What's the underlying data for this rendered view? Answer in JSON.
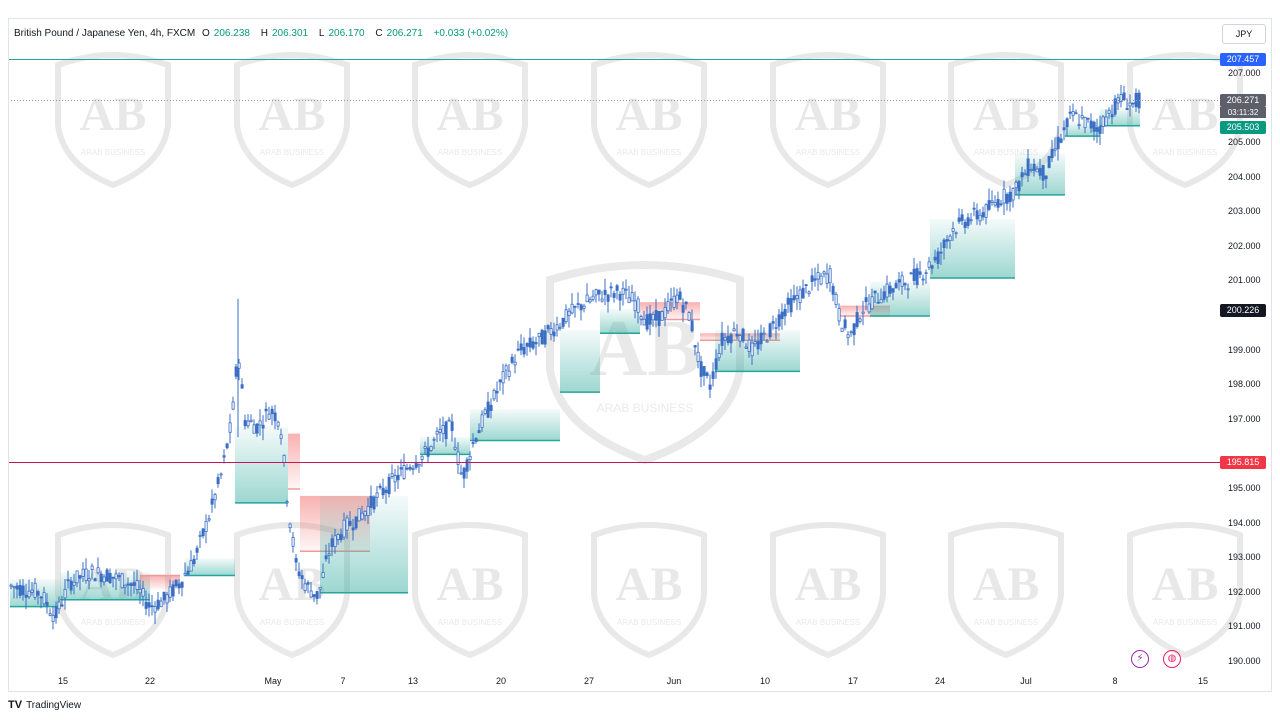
{
  "legend": {
    "symbol": "British Pound / Japanese Yen, 4h, FXCM",
    "open_label": "O",
    "open": "206.238",
    "high_label": "H",
    "high": "206.301",
    "low_label": "L",
    "low": "206.170",
    "close_label": "C",
    "close": "206.271",
    "change": "+0.033 (+0.02%)"
  },
  "currency_button": "JPY",
  "watermark_text": "ARAB BUSINESS",
  "price_axis": [
    "207.000",
    "205.000",
    "204.000",
    "203.000",
    "202.000",
    "201.000",
    "199.000",
    "198.000",
    "197.000",
    "195.000",
    "194.000",
    "193.000",
    "192.000",
    "191.000",
    "190.000"
  ],
  "time_axis": [
    "15",
    "22",
    "May",
    "7",
    "13",
    "20",
    "27",
    "Jun",
    "10",
    "17",
    "24",
    "Jul",
    "8",
    "15"
  ],
  "badges": {
    "top_line": {
      "value": "207.457",
      "color": "#2962ff"
    },
    "last_price": {
      "value": "206.271",
      "color": "#5d606b"
    },
    "countdown": "03:11:32",
    "stop": {
      "value": "205.503",
      "color": "#089981"
    },
    "crosshair": {
      "value": "200.226",
      "color": "#131722"
    },
    "support_line": {
      "value": "195.815",
      "color": "#f23645"
    }
  },
  "colors": {
    "candle": "#3a6fc4",
    "trail_up": "#26a69a",
    "trail_down": "#ef9a9a",
    "top_line": "#26a69a",
    "support_line": "#c2185b"
  },
  "branding": {
    "name": "TradingView"
  },
  "icons": [
    "lightning-icon",
    "globe-icon"
  ]
}
